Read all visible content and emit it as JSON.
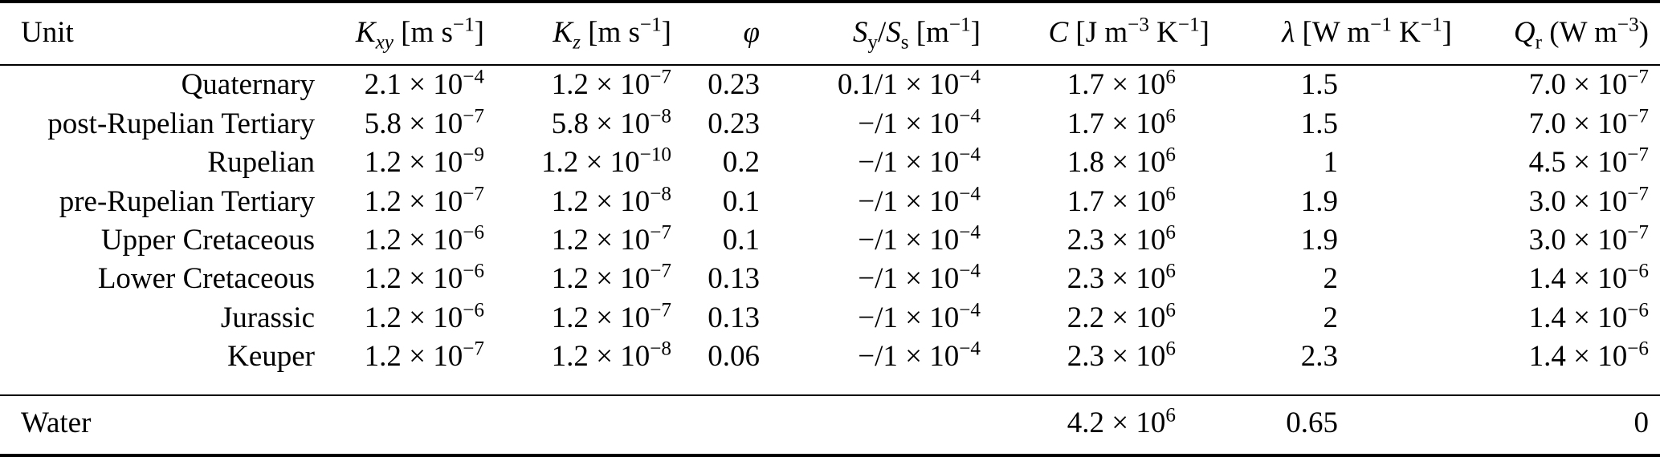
{
  "table": {
    "columns": [
      {
        "key": "unit",
        "label": "Unit"
      },
      {
        "key": "kxy",
        "label": "*K*_{*xy*} [m s^{−1}]"
      },
      {
        "key": "kz",
        "label": "*K*_{*z*} [m s^{−1}]"
      },
      {
        "key": "phi",
        "label": "*φ*"
      },
      {
        "key": "sy-ss",
        "label": "*S*_{y}/*S*_{s} [m^{−1}]"
      },
      {
        "key": "c",
        "label": "*C* [J m^{−3} K^{−1}]"
      },
      {
        "key": "lambda",
        "label": "*λ* [W m^{−1} K^{−1}]"
      },
      {
        "key": "qr",
        "label": "*Q*_{r} (W m^{−3})"
      }
    ],
    "rows": [
      [
        "Quaternary",
        "2.1 × 10^{−4}",
        "1.2 × 10^{−7}",
        "0.23",
        "0.1/1 × 10^{−4}",
        "1.7 × 10^{6}",
        "1.5",
        "7.0 × 10^{−7}"
      ],
      [
        "post-Rupelian Tertiary",
        "5.8 × 10^{−7}",
        "5.8 × 10^{−8}",
        "0.23",
        "−/1 × 10^{−4}",
        "1.7 × 10^{6}",
        "1.5",
        "7.0 × 10^{−7}"
      ],
      [
        "Rupelian",
        "1.2 × 10^{−9}",
        "1.2 × 10^{−10}",
        "0.2",
        "−/1 × 10^{−4}",
        "1.8 × 10^{6}",
        "1",
        "4.5 × 10^{−7}"
      ],
      [
        "pre-Rupelian Tertiary",
        "1.2 × 10^{−7}",
        "1.2 × 10^{−8}",
        "0.1",
        "−/1 × 10^{−4}",
        "1.7 × 10^{6}",
        "1.9",
        "3.0 × 10^{−7}"
      ],
      [
        "Upper Cretaceous",
        "1.2 × 10^{−6}",
        "1.2 × 10^{−7}",
        "0.1",
        "−/1 × 10^{−4}",
        "2.3 × 10^{6}",
        "1.9",
        "3.0 × 10^{−7}"
      ],
      [
        "Lower Cretaceous",
        "1.2 × 10^{−6}",
        "1.2 × 10^{−7}",
        "0.13",
        "−/1 × 10^{−4}",
        "2.3 × 10^{6}",
        "2",
        "1.4 × 10^{−6}"
      ],
      [
        "Jurassic",
        "1.2 × 10^{−6}",
        "1.2 × 10^{−7}",
        "0.13",
        "−/1 × 10^{−4}",
        "2.2 × 10^{6}",
        "2",
        "1.4 × 10^{−6}"
      ],
      [
        "Keuper",
        "1.2 × 10^{−7}",
        "1.2 × 10^{−8}",
        "0.06",
        "−/1 × 10^{−4}",
        "2.3 × 10^{6}",
        "2.3",
        "1.4 × 10^{−6}"
      ]
    ],
    "footer_rows": [
      [
        "Water",
        "",
        "",
        "",
        "",
        "4.2 × 10^{6}",
        "0.65",
        "0"
      ]
    ]
  }
}
